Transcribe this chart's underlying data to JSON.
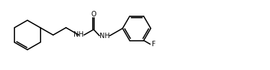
{
  "background": "#ffffff",
  "line_color": "#000000",
  "line_width": 1.2,
  "font_size": 7.0,
  "fig_width": 3.93,
  "fig_height": 1.03,
  "dpi": 100,
  "xlim": [
    0.0,
    10.5
  ],
  "ylim": [
    0.5,
    3.2
  ]
}
